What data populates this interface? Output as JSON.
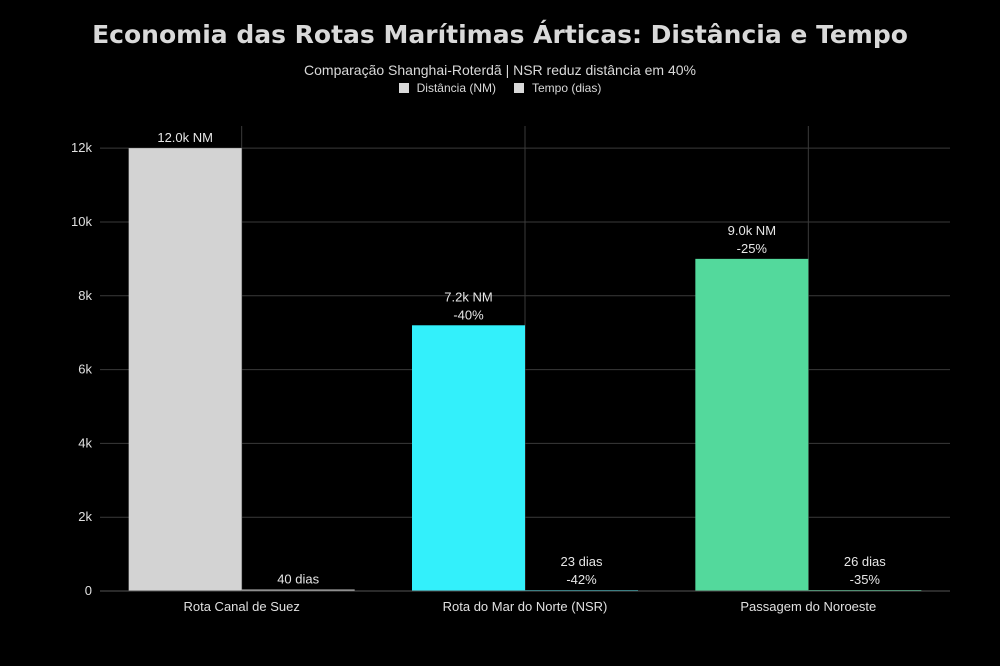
{
  "colors": {
    "background": "#000000",
    "grid": "#3a3a3a",
    "bar_suez": "#d3d3d3",
    "bar_nsr": "#33f0fb",
    "bar_nw": "#53d99c",
    "time_bar": "#c9c9c9"
  },
  "chart_data": {
    "type": "bar",
    "title": "Economia das Rotas Marítimas Árticas: Distância e Tempo",
    "subtitle": "Comparação Shanghai-Roterdã | NSR reduz distância em 40%",
    "legend": [
      "Distância (NM)",
      "Tempo (dias)"
    ],
    "legend_position": "top-center",
    "categories": [
      "Rota Canal de Suez",
      "Rota do Mar do Norte (NSR)",
      "Passagem do Noroeste"
    ],
    "series": [
      {
        "name": "Distância (NM)",
        "values": [
          12000,
          7200,
          9000
        ],
        "labels": [
          [
            "12.0k NM"
          ],
          [
            "7.2k NM",
            "-40%"
          ],
          [
            "9.0k NM",
            "-25%"
          ]
        ]
      },
      {
        "name": "Tempo (dias)",
        "values": [
          40,
          23,
          26
        ],
        "labels": [
          [
            "40 dias"
          ],
          [
            "23 dias",
            "-42%"
          ],
          [
            "26 dias",
            "-35%"
          ]
        ]
      }
    ],
    "yticks": [
      0,
      2000,
      4000,
      6000,
      8000,
      10000,
      12000
    ],
    "ytick_labels": [
      "0",
      "2k",
      "4k",
      "6k",
      "8k",
      "10k",
      "12k"
    ],
    "ylim": [
      0,
      12600
    ],
    "grid": true
  }
}
